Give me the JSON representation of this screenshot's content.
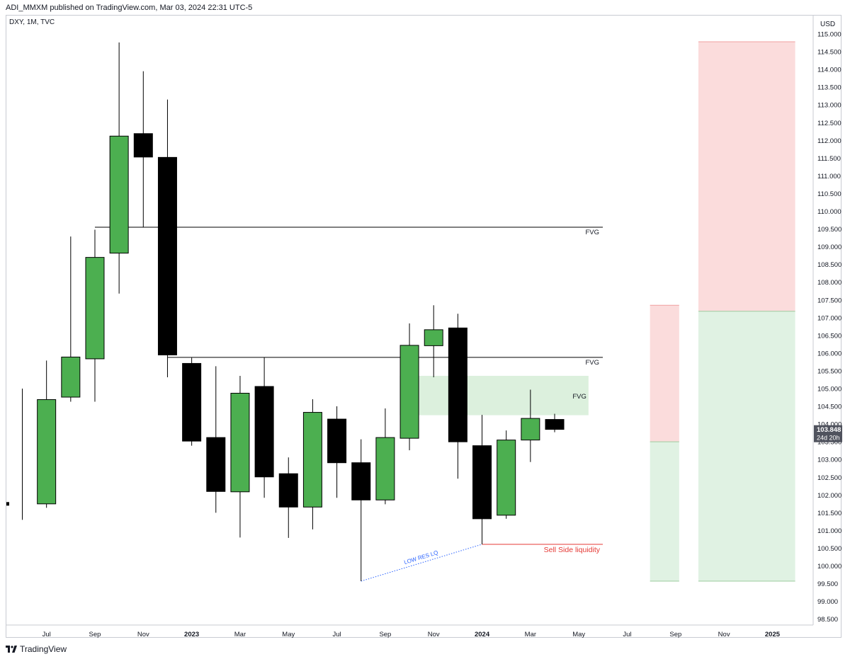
{
  "header": {
    "published": "ADI_MMXM published on TradingView.com, Mar 03, 2024 22:31 UTC-5"
  },
  "footer": {
    "brand": "TradingView"
  },
  "colors": {
    "bull": "#4caf50",
    "bear": "#000000",
    "outline": "#000000",
    "red_zone": "#fbdcdc",
    "green_zone": "#e0f2e3",
    "fvg_box": "#dcf0dd",
    "liquidity": "#e53935",
    "low_res": "#2962ff"
  },
  "chart_data": {
    "type": "candlestick",
    "symbol_label": "DXY, 1M, TVC",
    "currency": "USD",
    "timeframe": "1M",
    "ylim": [
      98.3,
      115.3
    ],
    "y_ticks": [
      "115.000",
      "114.500",
      "114.000",
      "113.500",
      "113.000",
      "112.500",
      "112.000",
      "111.500",
      "111.000",
      "110.500",
      "110.000",
      "109.500",
      "109.000",
      "108.500",
      "108.000",
      "107.500",
      "107.000",
      "106.500",
      "106.000",
      "105.500",
      "105.000",
      "104.500",
      "104.000",
      "103.500",
      "103.000",
      "102.500",
      "102.000",
      "101.500",
      "101.000",
      "100.500",
      "100.000",
      "99.500",
      "99.000",
      "98.500"
    ],
    "x_ticks": [
      {
        "label": "Jul",
        "index": 0
      },
      {
        "label": "Sep",
        "index": 2
      },
      {
        "label": "Nov",
        "index": 4
      },
      {
        "label": "2023",
        "index": 6,
        "bold": true
      },
      {
        "label": "Mar",
        "index": 8
      },
      {
        "label": "May",
        "index": 10
      },
      {
        "label": "Jul",
        "index": 12
      },
      {
        "label": "Sep",
        "index": 14
      },
      {
        "label": "Nov",
        "index": 16
      },
      {
        "label": "2024",
        "index": 18,
        "bold": true
      },
      {
        "label": "Mar",
        "index": 20
      },
      {
        "label": "May",
        "index": 22
      },
      {
        "label": "Jul",
        "index": 24
      },
      {
        "label": "Sep",
        "index": 26
      },
      {
        "label": "Nov",
        "index": 28
      },
      {
        "label": "2025",
        "index": 30,
        "bold": true
      }
    ],
    "candles": [
      {
        "date": "2022-05",
        "open": 101.7,
        "high": 105.0,
        "low": 101.3,
        "close": 101.8,
        "partial": true
      },
      {
        "date": "2022-06",
        "open": 101.75,
        "high": 105.79,
        "low": 101.64,
        "close": 104.69
      },
      {
        "date": "2022-07",
        "open": 104.76,
        "high": 109.29,
        "low": 104.63,
        "close": 105.89
      },
      {
        "date": "2022-08",
        "open": 105.84,
        "high": 109.48,
        "low": 104.63,
        "close": 108.7
      },
      {
        "date": "2022-09",
        "open": 108.82,
        "high": 114.76,
        "low": 107.68,
        "close": 112.12
      },
      {
        "date": "2022-10",
        "open": 112.19,
        "high": 113.95,
        "low": 109.54,
        "close": 111.53
      },
      {
        "date": "2022-11",
        "open": 111.52,
        "high": 113.15,
        "low": 105.32,
        "close": 105.95
      },
      {
        "date": "2022-12",
        "open": 105.71,
        "high": 105.87,
        "low": 103.39,
        "close": 103.52
      },
      {
        "date": "2023-01",
        "open": 103.62,
        "high": 105.63,
        "low": 101.5,
        "close": 102.1
      },
      {
        "date": "2023-02",
        "open": 102.09,
        "high": 105.36,
        "low": 100.8,
        "close": 104.87
      },
      {
        "date": "2023-03",
        "open": 105.06,
        "high": 105.88,
        "low": 101.92,
        "close": 102.51
      },
      {
        "date": "2023-04",
        "open": 102.6,
        "high": 103.06,
        "low": 100.79,
        "close": 101.66
      },
      {
        "date": "2023-05",
        "open": 101.66,
        "high": 104.7,
        "low": 101.03,
        "close": 104.33
      },
      {
        "date": "2023-06",
        "open": 104.14,
        "high": 104.5,
        "low": 101.92,
        "close": 102.91
      },
      {
        "date": "2023-07",
        "open": 102.91,
        "high": 103.57,
        "low": 99.57,
        "close": 101.86
      },
      {
        "date": "2023-08",
        "open": 101.86,
        "high": 104.44,
        "low": 101.74,
        "close": 103.62
      },
      {
        "date": "2023-09",
        "open": 103.6,
        "high": 106.84,
        "low": 103.26,
        "close": 106.22
      },
      {
        "date": "2023-10",
        "open": 106.21,
        "high": 107.35,
        "low": 105.32,
        "close": 106.66
      },
      {
        "date": "2023-11",
        "open": 106.71,
        "high": 107.11,
        "low": 102.46,
        "close": 103.5
      },
      {
        "date": "2023-12",
        "open": 103.39,
        "high": 104.26,
        "low": 100.61,
        "close": 101.33
      },
      {
        "date": "2024-01",
        "open": 101.43,
        "high": 103.82,
        "low": 101.33,
        "close": 103.55
      },
      {
        "date": "2024-02",
        "open": 103.55,
        "high": 104.97,
        "low": 102.93,
        "close": 104.16
      },
      {
        "date": "2024-03",
        "open": 104.13,
        "high": 104.29,
        "low": 103.77,
        "close": 103.85
      }
    ],
    "last_price": {
      "value": "103.848",
      "countdown": "24d 20h",
      "price": 103.848
    },
    "annotations": [
      {
        "type": "hline",
        "label": "FVG",
        "price": 109.55,
        "from_index": 3
      },
      {
        "type": "hline",
        "label": "FVG",
        "price": 105.88,
        "from_index": 6
      },
      {
        "type": "box",
        "label": "FVG",
        "price_top": 105.36,
        "price_bottom": 104.25,
        "from_index": 15.6,
        "to_index": 23.4
      },
      {
        "type": "hline",
        "label": "Sell Side liquidity",
        "price": 100.61,
        "from_index": 19
      },
      {
        "type": "dotted",
        "label": "LOW RES LQ",
        "from": {
          "index": 14,
          "price": 99.57
        },
        "to": {
          "index": 19,
          "price": 100.61
        }
      }
    ],
    "position_tools": [
      {
        "from_index": 26,
        "to_index": 27,
        "entry": 103.5,
        "target": 99.57,
        "stop": 107.35
      },
      {
        "from_index": 28,
        "to_index": 32,
        "entry": 107.18,
        "target": 99.57,
        "stop": 114.78
      }
    ]
  }
}
